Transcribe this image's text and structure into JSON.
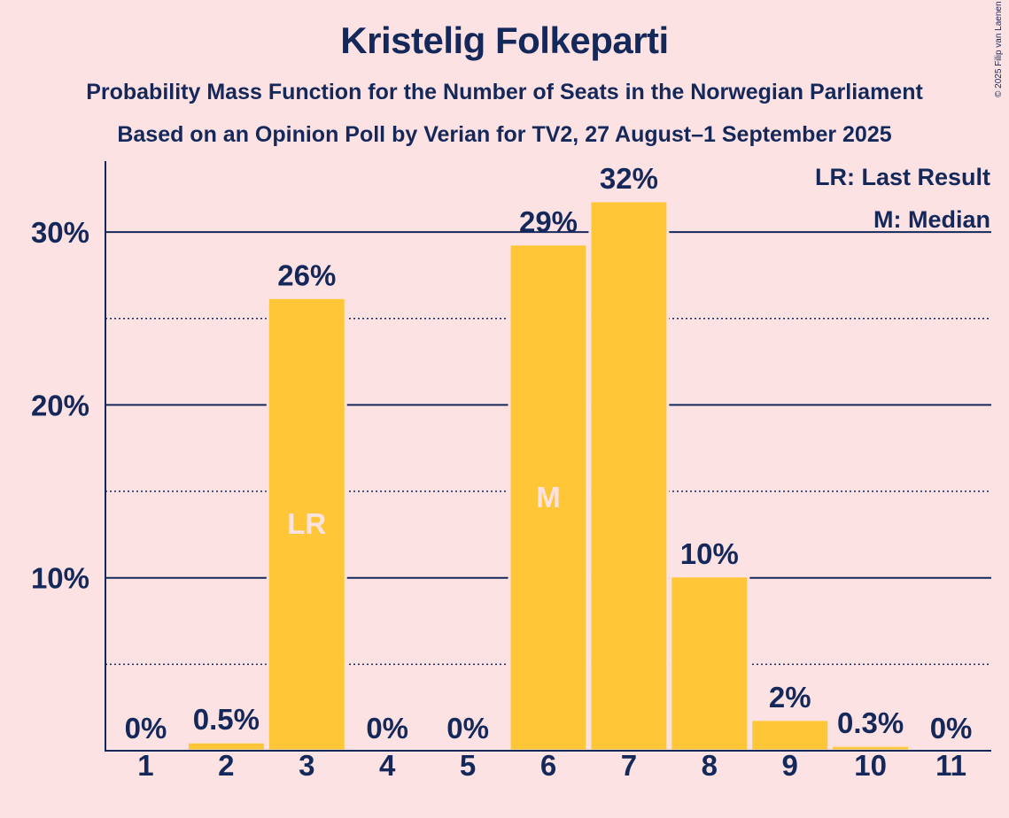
{
  "chart_data": {
    "type": "bar",
    "title": "Kristelig Folkeparti",
    "subtitle": "Probability Mass Function for the Number of Seats in the Norwegian Parliament",
    "subtitle2": "Based on an Opinion Poll by Verian for TV2, 27 August–1 September 2025",
    "copyright": "© 2025 Filip van Laenen",
    "categories": [
      "1",
      "2",
      "3",
      "4",
      "5",
      "6",
      "7",
      "8",
      "9",
      "10",
      "11"
    ],
    "values": [
      0,
      0.5,
      26.2,
      0,
      0,
      29.3,
      31.8,
      10.1,
      1.8,
      0.3,
      0
    ],
    "value_labels": [
      "0%",
      "0.5%",
      "26%",
      "0%",
      "0%",
      "29%",
      "32%",
      "10%",
      "2%",
      "0.3%",
      "0%"
    ],
    "bar_markers": [
      "",
      "",
      "LR",
      "",
      "",
      "M",
      "",
      "",
      "",
      "",
      ""
    ],
    "ylim": [
      0,
      34
    ],
    "y_ticks": [
      10,
      20,
      30
    ],
    "y_tick_labels": [
      "10%",
      "20%",
      "30%"
    ],
    "minor_grid": [
      5,
      15,
      25
    ],
    "legend": [
      "LR: Last Result",
      "M: Median"
    ],
    "legend_position": "top-right",
    "xlabel": "",
    "ylabel": "",
    "colors": {
      "background": "#FDE2E4",
      "bar": "#FFC637",
      "text": "#14285A",
      "marker_text": "#FDE2E4"
    }
  }
}
